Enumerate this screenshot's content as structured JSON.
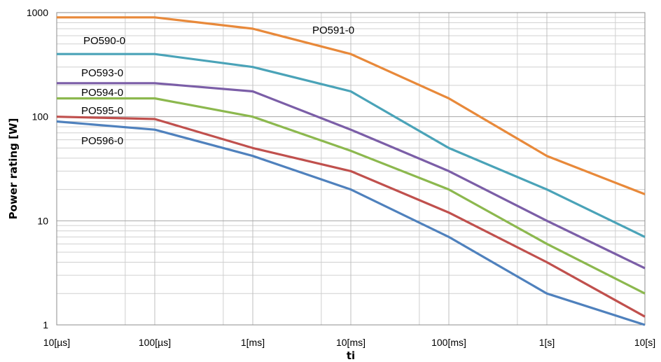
{
  "chart_data": {
    "type": "line",
    "xscale": "log",
    "yscale": "log",
    "xlim": [
      1e-05,
      10
    ],
    "ylim": [
      1,
      1000
    ],
    "xlabel": "ti",
    "ylabel": "Power rating [W]",
    "grid": true,
    "legend": "inline labels",
    "x_ticks": [
      {
        "value": 1e-05,
        "label": "10[µs]"
      },
      {
        "value": 0.0001,
        "label": "100[µs]"
      },
      {
        "value": 0.001,
        "label": "1[ms]"
      },
      {
        "value": 0.01,
        "label": "10[ms]"
      },
      {
        "value": 0.1,
        "label": "100[ms]"
      },
      {
        "value": 1,
        "label": "1[s]"
      },
      {
        "value": 10,
        "label": "10[s]"
      }
    ],
    "y_ticks": [
      {
        "value": 1,
        "label": "1"
      },
      {
        "value": 10,
        "label": "10"
      },
      {
        "value": 100,
        "label": "100"
      },
      {
        "value": 1000,
        "label": "1000"
      }
    ],
    "x": [
      1e-05,
      0.0001,
      0.001,
      0.01,
      0.1,
      1,
      10
    ],
    "series": [
      {
        "name": "PO591-0",
        "color": "#E8893A",
        "values": [
          900,
          900,
          700,
          400,
          150,
          42,
          18
        ]
      },
      {
        "name": "PO590-0",
        "color": "#4AA3B8",
        "values": [
          400,
          400,
          300,
          175,
          50,
          20,
          7
        ]
      },
      {
        "name": "PO593-0",
        "color": "#7B5EA7",
        "values": [
          210,
          210,
          175,
          75,
          30,
          10,
          3.5
        ]
      },
      {
        "name": "PO594-0",
        "color": "#8CB84E",
        "values": [
          150,
          150,
          100,
          47,
          20,
          6,
          2
        ]
      },
      {
        "name": "PO595-0",
        "color": "#C0504D",
        "values": [
          100,
          95,
          50,
          30,
          12,
          4,
          1.2
        ]
      },
      {
        "name": "PO596-0",
        "color": "#4F81BD",
        "values": [
          90,
          75,
          42,
          20,
          7,
          2,
          1
        ]
      }
    ]
  }
}
